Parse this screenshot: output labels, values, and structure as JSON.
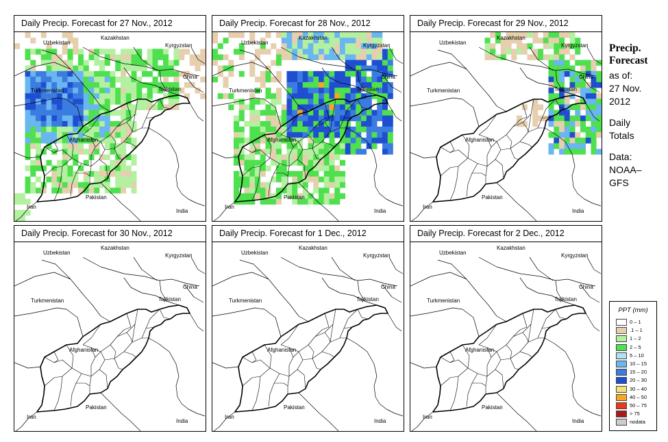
{
  "panels": [
    {
      "title": "Daily Precip. Forecast for  27 Nov., 2012",
      "precip": "p1"
    },
    {
      "title": "Daily Precip. Forecast for  28 Nov., 2012",
      "precip": "p2"
    },
    {
      "title": "Daily Precip. Forecast for  29 Nov., 2012",
      "precip": "p3"
    },
    {
      "title": "Daily Precip. Forecast for  30 Nov., 2012",
      "precip": "none"
    },
    {
      "title": "Daily Precip. Forecast for  1 Dec., 2012",
      "precip": "none"
    },
    {
      "title": "Daily Precip. Forecast for  2 Dec., 2012",
      "precip": "none"
    }
  ],
  "countries": [
    "Uzbekistan",
    "Kazakhstan",
    "Kyrgyzstan",
    "China",
    "Turkmenistan",
    "Tajikistan",
    "Afghanistan",
    "Pakistan",
    "Iran",
    "India"
  ],
  "side": {
    "heading1": "Precip.",
    "heading2": "Forecast",
    "asof": "as of:",
    "date1": "27 Nov.",
    "date2": "2012",
    "totals1": "Daily",
    "totals2": "Totals",
    "data1": "Data:",
    "data2": "NOAA–",
    "data3": "GFS"
  },
  "legend": {
    "title": "PPT (mm)",
    "items": [
      {
        "label": "0 – 1",
        "color": "#ffffff"
      },
      {
        "label": ".1 – 1",
        "color": "#e6cfae"
      },
      {
        "label": "1 – 2",
        "color": "#b3f0a0"
      },
      {
        "label": "2 – 5",
        "color": "#4ee04e"
      },
      {
        "label": "5 – 10",
        "color": "#b0e2f5"
      },
      {
        "label": "10 – 15",
        "color": "#6ab6f0"
      },
      {
        "label": "15 – 20",
        "color": "#3a7ce0"
      },
      {
        "label": "20 – 30",
        "color": "#1f4fd0"
      },
      {
        "label": "30 – 40",
        "color": "#f5e07a"
      },
      {
        "label": "40 – 50",
        "color": "#f5a623"
      },
      {
        "label": "50 – 75",
        "color": "#e63a1a"
      },
      {
        "label": "> 75",
        "color": "#a81a1a"
      },
      {
        "label": "nodata",
        "color": "#cccccc"
      }
    ]
  }
}
